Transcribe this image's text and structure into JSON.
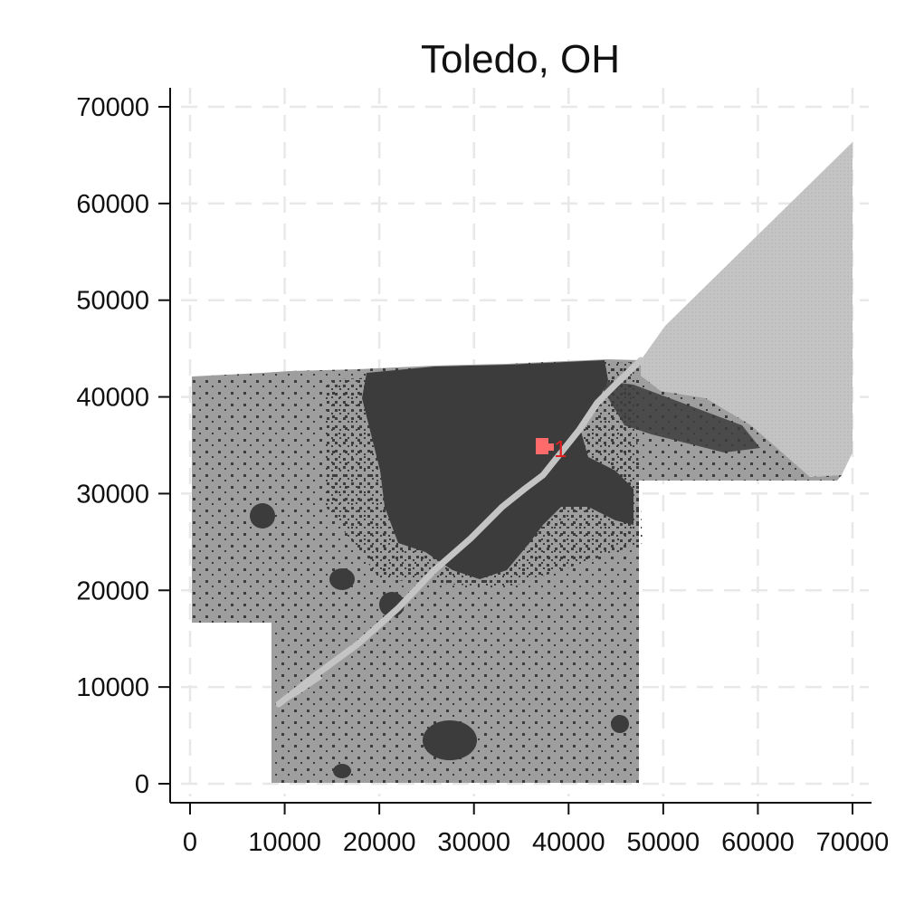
{
  "map": {
    "title": "Toledo, OH",
    "x_ticks": [
      "0",
      "10000",
      "20000",
      "30000",
      "40000",
      "50000",
      "60000",
      "70000"
    ],
    "y_ticks": [
      "0",
      "10000",
      "20000",
      "30000",
      "40000",
      "50000",
      "60000",
      "70000"
    ],
    "x_range": [
      0,
      70000
    ],
    "y_range": [
      0,
      70000
    ],
    "grid": true,
    "marker_label": "1",
    "colors": {
      "land": "#9e9e9e",
      "urban": "#3c3c3c",
      "water": "#c4c4c4",
      "marker": "#ff6b6b",
      "marker_text": "#e02020",
      "grid": "#e8e8e8"
    }
  }
}
